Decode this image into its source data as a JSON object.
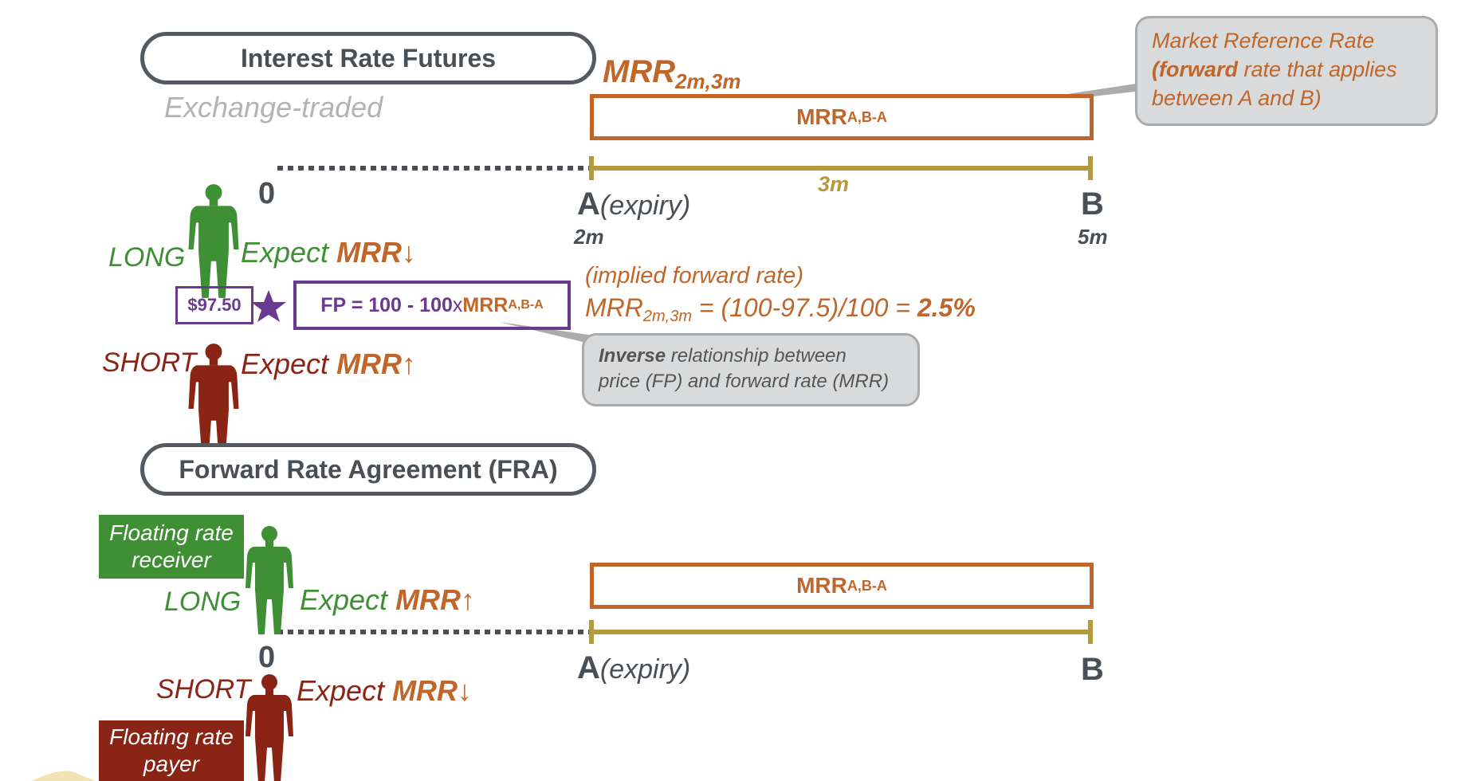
{
  "futures": {
    "title": "Interest Rate Futures",
    "subtitle": "Exchange-traded",
    "mrr_heading_main": "MRR",
    "mrr_heading_sub": "2m,3m",
    "mrr_box_main": "MRR",
    "mrr_box_sub": "A,B-A",
    "callout_line1": "Market Reference Rate",
    "callout_line2_bold": "(forward",
    "callout_line2_rest": " rate that applies",
    "callout_line3": "between A and B)",
    "zero": "0",
    "period_label": "3m",
    "a_letter": "A",
    "a_note": "(expiry)",
    "a_month": "2m",
    "b_letter": "B",
    "b_month": "5m",
    "long_label": "LONG",
    "long_expect": "Expect ",
    "long_mrr": "MRR↓",
    "short_label": "SHORT",
    "short_expect": "Expect ",
    "short_mrr": "MRR↑",
    "price": "$97.50",
    "formula_left": "FP = 100 - 100",
    "formula_x": "x",
    "formula_mrr": "MRR",
    "formula_sub": "A,B-A",
    "implied_label": "(implied forward rate)",
    "implied_mrr": "MRR",
    "implied_sub": "2m,3m",
    "implied_expr": " = (100-97.5)/100 = ",
    "implied_result": "2.5%",
    "inverse_bold": "Inverse",
    "inverse_rest": " relationship between",
    "inverse_line2": "price (FP) and forward rate (MRR)"
  },
  "fra": {
    "title": "Forward Rate Agreement (FRA)",
    "receiver_line1": "Floating rate",
    "receiver_line2": "receiver",
    "long_label": "LONG",
    "long_expect": "Expect ",
    "long_mrr": "MRR↑",
    "mrr_box_main": "MRR",
    "mrr_box_sub": "A,B-A",
    "zero": "0",
    "a_letter": "A",
    "a_note": "(expiry)",
    "b_letter": "B",
    "short_label": "SHORT",
    "short_expect": "Expect ",
    "short_mrr": "MRR↓",
    "payer_line1": "Floating rate",
    "payer_line2": "payer"
  },
  "colors": {
    "green": "#3f8f35",
    "dark_red": "#8a2414",
    "orange": "#c0662a",
    "purple": "#6a3a8e",
    "gold": "#b59a3c",
    "pill_border": "#555a60"
  },
  "icons": {
    "person_long": "person-silhouette-icon",
    "person_short": "person-silhouette-icon",
    "star": "star-icon"
  }
}
